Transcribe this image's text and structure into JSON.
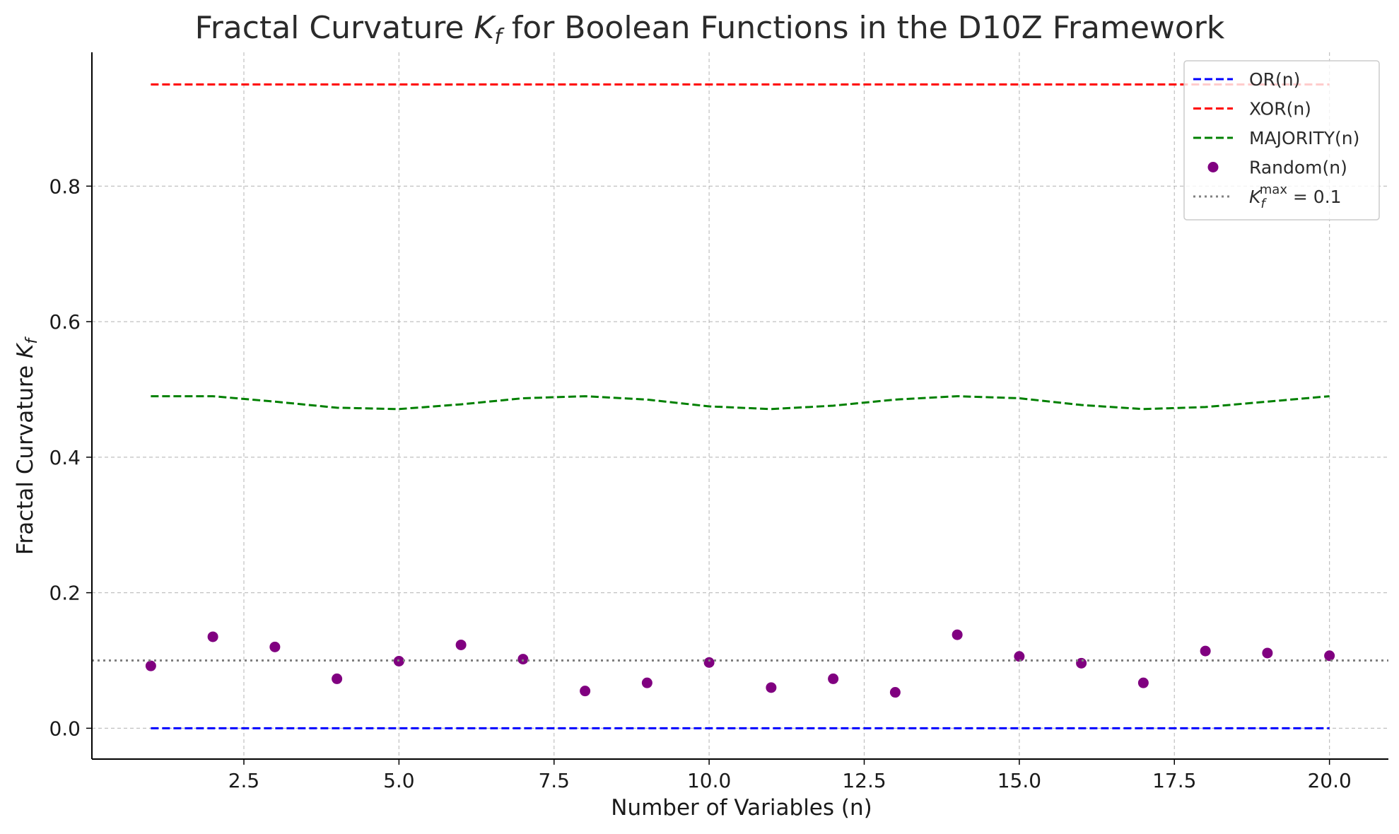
{
  "chart_data": {
    "type": "line",
    "title": "Fractal Curvature K_f for Boolean Functions in the D10Z Framework",
    "title_parts": {
      "pre": "Fractal Curvature ",
      "sym": "K",
      "sub": "f",
      "post": " for Boolean Functions in the D10Z Framework"
    },
    "xlabel": "Number of Variables (n)",
    "ylabel": "Fractal Curvature K_f",
    "ylabel_parts": {
      "pre": "Fractal Curvature ",
      "sym": "K",
      "sub": "f"
    },
    "xlim": [
      0.05,
      20.95
    ],
    "ylim": [
      -0.0455,
      0.9975
    ],
    "x_ticks": [
      2.5,
      5.0,
      7.5,
      10.0,
      12.5,
      15.0,
      17.5,
      20.0
    ],
    "x_tick_labels": [
      "2.5",
      "5.0",
      "7.5",
      "10.0",
      "12.5",
      "15.0",
      "17.5",
      "20.0"
    ],
    "y_ticks": [
      0.0,
      0.2,
      0.4,
      0.6,
      0.8
    ],
    "y_tick_labels": [
      "0.0",
      "0.2",
      "0.4",
      "0.6",
      "0.8"
    ],
    "grid": true,
    "legend_position": "top-right",
    "x": [
      1,
      2,
      3,
      4,
      5,
      6,
      7,
      8,
      9,
      10,
      11,
      12,
      13,
      14,
      15,
      16,
      17,
      18,
      19,
      20
    ],
    "series": [
      {
        "name": "OR(n)",
        "style": "dashed",
        "color": "#0000ff",
        "values": [
          0,
          0,
          0,
          0,
          0,
          0,
          0,
          0,
          0,
          0,
          0,
          0,
          0,
          0,
          0,
          0,
          0,
          0,
          0,
          0
        ]
      },
      {
        "name": "XOR(n)",
        "style": "dashed",
        "color": "#ff0000",
        "values": [
          0.95,
          0.95,
          0.95,
          0.95,
          0.95,
          0.95,
          0.95,
          0.95,
          0.95,
          0.95,
          0.95,
          0.95,
          0.95,
          0.95,
          0.95,
          0.95,
          0.95,
          0.95,
          0.95,
          0.95
        ]
      },
      {
        "name": "MAJORITY(n)",
        "style": "dashed",
        "color": "#008000",
        "values": [
          0.49,
          0.49,
          0.482,
          0.473,
          0.471,
          0.478,
          0.487,
          0.49,
          0.485,
          0.475,
          0.471,
          0.476,
          0.485,
          0.49,
          0.487,
          0.477,
          0.471,
          0.474,
          0.482,
          0.49
        ]
      },
      {
        "name": "Random(n)",
        "style": "scatter",
        "color": "#800080",
        "values": [
          0.092,
          0.135,
          0.12,
          0.073,
          0.099,
          0.123,
          0.102,
          0.055,
          0.067,
          0.097,
          0.06,
          0.073,
          0.053,
          0.138,
          0.106,
          0.096,
          0.067,
          0.114,
          0.111,
          0.107
        ]
      },
      {
        "name": "K_f^max = 0.1",
        "style": "dotted",
        "color": "#808080",
        "y": 0.1,
        "legend_parts": {
          "sym": "K",
          "sub": "f",
          "sup": "max",
          "post": " = 0.1"
        }
      }
    ]
  }
}
